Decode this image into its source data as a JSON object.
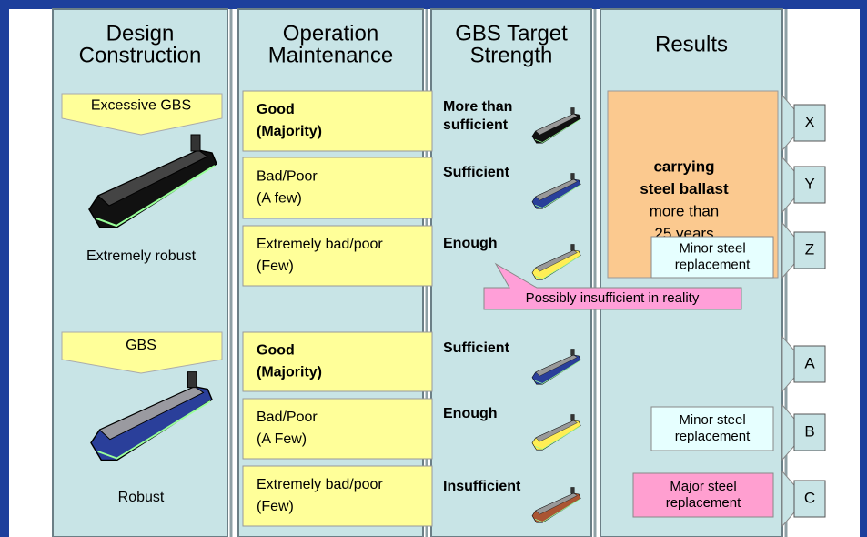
{
  "columns": [
    {
      "title_lines": [
        "Design",
        "Construction"
      ]
    },
    {
      "title_lines": [
        "Operation",
        "Maintenance"
      ]
    },
    {
      "title_lines": [
        "GBS Target",
        "Strength"
      ]
    },
    {
      "title_lines": [
        "Results"
      ]
    }
  ],
  "design": [
    {
      "tag": "Excessive GBS",
      "caption": "Extremely robust"
    },
    {
      "tag": "GBS",
      "caption": "Robust"
    }
  ],
  "operation": [
    {
      "lines": [
        "Good",
        "(Majority)"
      ],
      "bold": true
    },
    {
      "lines": [
        "Bad/Poor",
        "(A few)"
      ],
      "bold": false
    },
    {
      "lines": [
        "Extremely bad/poor",
        "(Few)"
      ],
      "bold": false
    },
    {
      "lines": [
        "Good",
        "(Majority)"
      ],
      "bold": true
    },
    {
      "lines": [
        "Bad/Poor",
        "(A Few)"
      ],
      "bold": false
    },
    {
      "lines": [
        "Extremely bad/poor",
        "(Few)"
      ],
      "bold": false
    }
  ],
  "strength": [
    {
      "lines": [
        "More than",
        "sufficient"
      ]
    },
    {
      "lines": [
        "Sufficient"
      ]
    },
    {
      "lines": [
        "Enough"
      ]
    },
    {
      "lines": [
        "Sufficient"
      ]
    },
    {
      "lines": [
        "Enough"
      ]
    },
    {
      "lines": [
        "Insufficient"
      ]
    }
  ],
  "results": {
    "main_lines": [
      "carrying",
      "steel ballast",
      "more than",
      "25 years"
    ],
    "minor_upper": [
      "Minor steel",
      "replacement"
    ],
    "minor_lower": [
      "Minor steel",
      "replacement"
    ],
    "major": [
      "Major steel",
      "replacement"
    ]
  },
  "callout": "Possibly insufficient in reality",
  "grades": [
    "X",
    "Y",
    "Z",
    "A",
    "B",
    "C"
  ]
}
